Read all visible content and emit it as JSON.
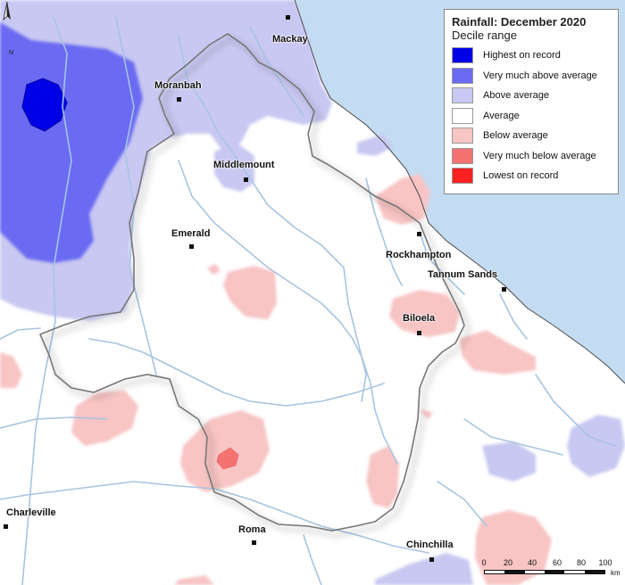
{
  "legend": {
    "title": "Rainfall: December 2020",
    "subtitle": "Decile range",
    "items": [
      {
        "label": "Highest on record",
        "color": "#0000e6"
      },
      {
        "label": "Very much above average",
        "color": "#6a6af2"
      },
      {
        "label": "Above average",
        "color": "#c8c8f2"
      },
      {
        "label": "Average",
        "color": "#ffffff"
      },
      {
        "label": "Below average",
        "color": "#f8c4c4"
      },
      {
        "label": "Very much below average",
        "color": "#f57272"
      },
      {
        "label": "Lowest on record",
        "color": "#ff2020"
      }
    ]
  },
  "towns": [
    {
      "name": "Mackay"
    },
    {
      "name": "Moranbah"
    },
    {
      "name": "Middlemount"
    },
    {
      "name": "Emerald"
    },
    {
      "name": "Rockhampton"
    },
    {
      "name": "Tannum Sands"
    },
    {
      "name": "Biloela"
    },
    {
      "name": "Charleville"
    },
    {
      "name": "Roma"
    },
    {
      "name": "Chinchilla"
    }
  ],
  "north_arrow": {
    "label": "N"
  },
  "scale_bar": {
    "ticks": [
      "0",
      "20",
      "40",
      "60",
      "80",
      "100"
    ],
    "unit": "km"
  },
  "colors": {
    "ocean": "#c4dcf2",
    "river": "#a8c4e0",
    "land": "#ffffff"
  }
}
